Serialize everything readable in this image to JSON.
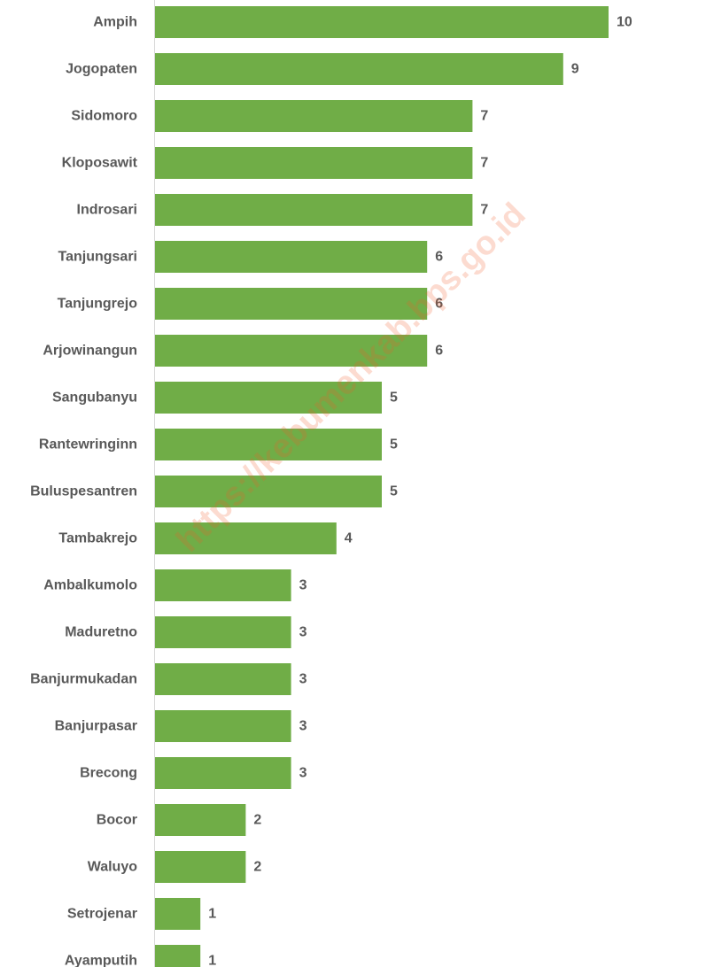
{
  "chart_data": {
    "type": "bar",
    "orientation": "horizontal",
    "categories": [
      "Ampih",
      "Jogopaten",
      "Sidomoro",
      "Kloposawit",
      "Indrosari",
      "Tanjungsari",
      "Tanjungrejo",
      "Arjowinangun",
      "Sangubanyu",
      "Rantewringinn",
      "Buluspesantren",
      "Tambakrejo",
      "Ambalkumolo",
      "Maduretno",
      "Banjurmukadan",
      "Banjurpasar",
      "Brecong",
      "Bocor",
      "Waluyo",
      "Setrojenar",
      "Ayamputih"
    ],
    "values": [
      10,
      9,
      7,
      7,
      7,
      6,
      6,
      6,
      5,
      5,
      5,
      4,
      3,
      3,
      3,
      3,
      3,
      2,
      2,
      1,
      1
    ],
    "xlim": [
      0,
      12
    ],
    "grid": false,
    "legend": "none",
    "bar_color": "#70AD47",
    "label_color": "#595959",
    "axis_color": "#D9D9D9",
    "watermark": "https://kebumenkab.bps.go.id",
    "watermark_color": "#F05A28"
  }
}
